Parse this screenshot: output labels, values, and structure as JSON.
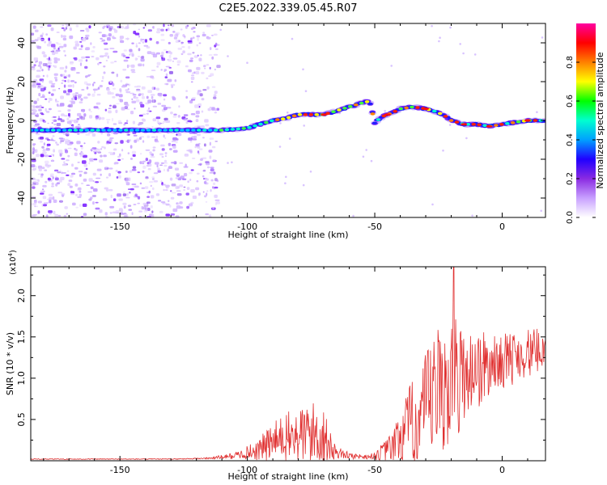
{
  "figure": {
    "title": "C2E5.2022.339.05.45.R07"
  },
  "chart_data": [
    {
      "type": "heatmap",
      "xlabel": "Height of straight line (km)",
      "ylabel": "Frequency (Hz)",
      "xlim": [
        -185,
        17
      ],
      "ylim": [
        -50,
        50
      ],
      "xticks": [
        -150,
        -100,
        -50,
        0
      ],
      "yticks": [
        -40,
        -20,
        0,
        20,
        40
      ],
      "noise_region_x": [
        -185,
        -112
      ],
      "trace_centerline": {
        "x": [
          -185,
          -150,
          -120,
          -110,
          -100,
          -95,
          -90,
          -85,
          -80,
          -75,
          -70,
          -65,
          -60,
          -55,
          -52,
          -50,
          -47,
          -43,
          -40,
          -35,
          -30,
          -27,
          -25,
          -22,
          -20,
          -15,
          -10,
          -5,
          0,
          5,
          10,
          15,
          17
        ],
        "freq": [
          -5,
          -5,
          -5,
          -5,
          -4,
          -2,
          0,
          1,
          3,
          3,
          3,
          5,
          7,
          9,
          10,
          -1,
          2,
          4,
          6,
          7,
          6,
          5,
          4,
          2,
          0,
          -2,
          -2,
          -3,
          -2,
          -1,
          0,
          0,
          0
        ]
      },
      "colorbar": {
        "label": "Normalized spectral amplitude",
        "range": [
          0,
          1
        ],
        "ticks": [
          "0.0",
          "0.2",
          "0.4",
          "0.6",
          "0.8"
        ],
        "colormap": [
          "#ffffff",
          "#c8a0ff",
          "#8a2be2",
          "#2000ff",
          "#00a0ff",
          "#00ffd0",
          "#00ff00",
          "#ffff00",
          "#ff8000",
          "#ff0000",
          "#ff00a0"
        ]
      }
    },
    {
      "type": "line",
      "xlabel": "Height of straight line (km)",
      "ylabel": "SNR (10 * v/v)",
      "y_multiplier": "(x10",
      "y_multiplier_exp": "4",
      "y_multiplier_close": ")",
      "xlim": [
        -185,
        17
      ],
      "ylim": [
        0,
        2.35
      ],
      "xticks": [
        -150,
        -100,
        -50,
        0
      ],
      "yticks": [
        "0.5",
        "1.0",
        "1.5",
        "2.0"
      ],
      "color": "#e03030",
      "envelope": {
        "x": [
          -185,
          -130,
          -115,
          -105,
          -100,
          -95,
          -90,
          -85,
          -80,
          -75,
          -70,
          -68,
          -65,
          -62,
          -60,
          -55,
          -52,
          -50,
          -48,
          -45,
          -42,
          -40,
          -38,
          -35,
          -32,
          -30,
          -28,
          -25,
          -22,
          -20,
          -18,
          -17,
          -15,
          -12,
          -10,
          -8,
          -5,
          -2,
          0,
          2,
          5,
          8,
          10,
          12,
          15,
          17
        ],
        "base": [
          0.02,
          0.02,
          0.03,
          0.06,
          0.1,
          0.14,
          0.22,
          0.28,
          0.3,
          0.34,
          0.3,
          0.18,
          0.1,
          0.08,
          0.06,
          0.05,
          0.05,
          0.06,
          0.08,
          0.12,
          0.2,
          0.28,
          0.35,
          0.45,
          0.5,
          0.6,
          0.7,
          0.85,
          0.9,
          0.95,
          1.0,
          1.0,
          1.05,
          1.1,
          1.15,
          1.1,
          1.15,
          1.2,
          1.2,
          1.25,
          1.25,
          1.3,
          1.3,
          1.3,
          1.35,
          1.4
        ],
        "amp": [
          0.005,
          0.005,
          0.01,
          0.04,
          0.08,
          0.15,
          0.25,
          0.3,
          0.35,
          0.4,
          0.35,
          0.2,
          0.08,
          0.05,
          0.04,
          0.03,
          0.03,
          0.05,
          0.1,
          0.15,
          0.25,
          0.35,
          0.45,
          0.55,
          0.6,
          0.7,
          0.8,
          0.8,
          0.8,
          0.8,
          0.75,
          0.7,
          0.55,
          0.5,
          0.55,
          0.5,
          0.4,
          0.3,
          0.35,
          0.3,
          0.35,
          0.3,
          0.3,
          0.3,
          0.25,
          0.2
        ]
      },
      "peak": {
        "x": -19,
        "y": 2.35
      }
    }
  ]
}
